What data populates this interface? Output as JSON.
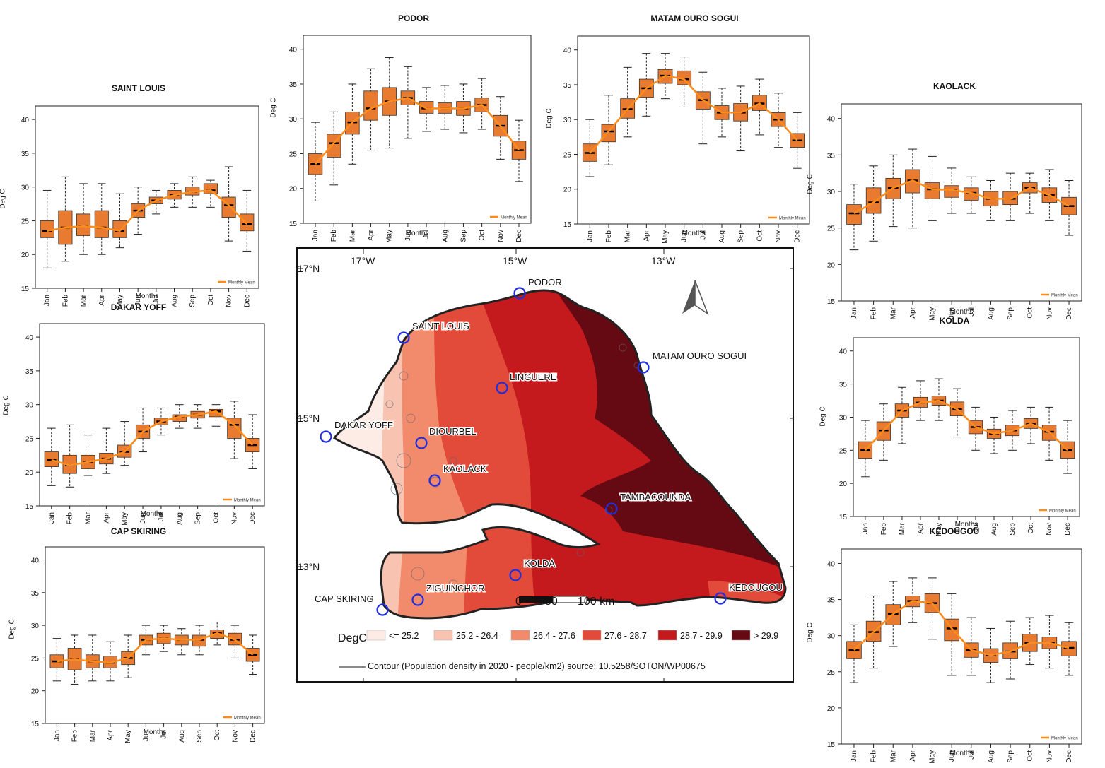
{
  "common": {
    "months": [
      "Jan",
      "Feb",
      "Mar",
      "Apr",
      "May",
      "Jun",
      "Jul",
      "Aug",
      "Sep",
      "Oct",
      "Nov",
      "Dec"
    ],
    "xlabel": "Months",
    "ylabel": "Deg C",
    "yticks": [
      15,
      20,
      25,
      30,
      35,
      40
    ],
    "legend": "Monthly Mean",
    "box_color": "#e87b2f",
    "mean_color": "#ff8c1a"
  },
  "chart_data": [
    {
      "type": "box",
      "title": "SAINT LOUIS",
      "ylim": [
        15,
        42
      ],
      "median": [
        23.5,
        24,
        24.2,
        24,
        23.5,
        26.5,
        28,
        28.8,
        29.3,
        29.5,
        27.3,
        24.5
      ],
      "q1": [
        22.5,
        21.5,
        22.8,
        22.5,
        22.5,
        25.5,
        27.5,
        28.2,
        28.8,
        29,
        25.5,
        23.5
      ],
      "q3": [
        25,
        26.5,
        26,
        26.5,
        25,
        27.5,
        28.5,
        29.5,
        30,
        30.5,
        28.5,
        26
      ],
      "min": [
        18,
        19,
        20,
        20,
        21,
        23,
        26,
        27,
        27,
        27,
        22,
        20.5
      ],
      "max": [
        29.5,
        31.5,
        30.5,
        30.5,
        29,
        30,
        29.5,
        30.5,
        31.5,
        31,
        33,
        29.5
      ],
      "mean": [
        23.5,
        24,
        24.2,
        24,
        23.5,
        26.5,
        28,
        28.8,
        29.3,
        29.5,
        27.3,
        24.5
      ]
    },
    {
      "type": "box",
      "title": "DAKAR YOFF",
      "ylim": [
        15,
        42
      ],
      "median": [
        21.8,
        21,
        21.5,
        22,
        23,
        26,
        27.5,
        28.2,
        28.5,
        29,
        27,
        24
      ],
      "q1": [
        20.8,
        19.8,
        20.5,
        21.2,
        22.2,
        25,
        27,
        27.5,
        28,
        28.2,
        25,
        23
      ],
      "q3": [
        23,
        22.5,
        22.5,
        22.8,
        24,
        27,
        28,
        28.5,
        29,
        29.3,
        28,
        25
      ],
      "min": [
        18,
        17.8,
        19.5,
        19.8,
        21,
        23,
        25.5,
        26.5,
        26.5,
        26.8,
        22,
        20.5
      ],
      "max": [
        26.5,
        27,
        25.5,
        26.5,
        27.5,
        29.5,
        29.5,
        30,
        30,
        30,
        30.5,
        28.5
      ],
      "mean": [
        21.8,
        21,
        21.5,
        22,
        23,
        26,
        27.5,
        28.2,
        28.5,
        29,
        27,
        24
      ]
    },
    {
      "type": "box",
      "title": "CAP SKIRING",
      "ylim": [
        15,
        42
      ],
      "median": [
        24.5,
        24.8,
        24.5,
        24.3,
        25,
        27.8,
        28,
        27.8,
        27.8,
        28.8,
        27.8,
        25.5
      ],
      "q1": [
        23.5,
        23.2,
        23.5,
        23.5,
        24,
        27,
        27.2,
        27,
        26.8,
        28,
        27,
        24.5
      ],
      "q3": [
        25.5,
        26.5,
        25.5,
        25.3,
        26,
        28.5,
        28.8,
        28.5,
        28.5,
        29.3,
        28.8,
        26.5
      ],
      "min": [
        21.5,
        21,
        21.5,
        21.5,
        22,
        25.5,
        26,
        25.5,
        25.5,
        27,
        25,
        22.5
      ],
      "max": [
        28,
        28.5,
        28.5,
        27.5,
        28.5,
        30,
        30,
        29.5,
        30,
        30.5,
        30,
        28.5
      ],
      "mean": [
        24.5,
        24.8,
        24.5,
        24.3,
        25,
        27.8,
        28,
        27.8,
        27.8,
        28.8,
        27.8,
        25.5
      ]
    },
    {
      "type": "box",
      "title": "PODOR",
      "ylim": [
        15,
        42
      ],
      "median": [
        23.5,
        26.5,
        29.5,
        31.5,
        32.5,
        33,
        31.5,
        31.5,
        31.5,
        32,
        29,
        25.5
      ],
      "q1": [
        22,
        24.5,
        27.8,
        29.8,
        30.5,
        32,
        30.8,
        30.8,
        30.5,
        31,
        27.5,
        24.2
      ],
      "q3": [
        25,
        27.8,
        31,
        34,
        34.5,
        34,
        32.5,
        32.3,
        32.5,
        33,
        30.5,
        26.8
      ],
      "min": [
        18.2,
        20.5,
        23.5,
        25.5,
        25.8,
        27.2,
        28.2,
        28.5,
        28,
        28.5,
        24.2,
        21
      ],
      "max": [
        29.5,
        31,
        35,
        37.2,
        38.8,
        37.5,
        34.5,
        34.8,
        35,
        35.8,
        33.2,
        29.8
      ],
      "mean": [
        23.5,
        26.5,
        29.5,
        31.5,
        32.5,
        33,
        31.5,
        31.5,
        31.5,
        32,
        29,
        25.5
      ]
    },
    {
      "type": "box",
      "title": "MATAM OURO SOGUI",
      "ylim": [
        15,
        42
      ],
      "median": [
        25.2,
        28.3,
        31.5,
        34.5,
        36.3,
        35.8,
        32.8,
        31,
        31,
        32.3,
        30,
        27
      ],
      "q1": [
        24,
        26.8,
        30.2,
        33.2,
        35.2,
        35,
        31.5,
        30,
        29.8,
        31.3,
        29,
        26
      ],
      "q3": [
        26.5,
        29.3,
        33,
        35.8,
        37.2,
        37,
        34,
        32,
        32.3,
        33.5,
        31,
        28
      ],
      "min": [
        21.8,
        23.5,
        27.5,
        30.5,
        33,
        31.8,
        26.5,
        27.5,
        25.5,
        27.8,
        26,
        23
      ],
      "max": [
        30,
        33.5,
        37.5,
        39.5,
        39.5,
        39,
        36.8,
        34.5,
        34.8,
        35.8,
        33.8,
        31
      ],
      "mean": [
        25.2,
        28.3,
        31.5,
        34.5,
        36.3,
        35.8,
        32.8,
        31,
        31,
        32.3,
        30,
        27
      ]
    },
    {
      "type": "box",
      "title": "KAOLACK",
      "ylim": [
        15,
        42
      ],
      "median": [
        27,
        28.5,
        30.5,
        31.5,
        30.3,
        30.2,
        29.8,
        29,
        29,
        30.5,
        29.5,
        28
      ],
      "q1": [
        25.5,
        27,
        29,
        29.8,
        29,
        29.2,
        28.8,
        28,
        28.2,
        29.8,
        28.5,
        26.8
      ],
      "q3": [
        28.2,
        30.5,
        31.8,
        33,
        31.2,
        30.8,
        30.5,
        30,
        30,
        31.2,
        30.5,
        29.2
      ],
      "min": [
        22,
        23.2,
        25.2,
        25,
        26,
        27,
        27,
        26,
        26,
        27,
        26,
        24
      ],
      "max": [
        31,
        33.5,
        35,
        35.8,
        34.8,
        33.2,
        32,
        31.5,
        32.5,
        32.5,
        33,
        31.5
      ],
      "mean": [
        27,
        28.5,
        30.5,
        31.5,
        30.3,
        30.2,
        29.8,
        29,
        29,
        30.5,
        29.5,
        28
      ]
    },
    {
      "type": "box",
      "title": "KOLDA",
      "ylim": [
        15,
        42
      ],
      "median": [
        25,
        28,
        31,
        32.2,
        32.5,
        31.2,
        28.5,
        27.5,
        28,
        29,
        27.8,
        25
      ],
      "q1": [
        23.8,
        26.5,
        30,
        31.5,
        31.8,
        30.2,
        27.5,
        26.8,
        27.2,
        28.3,
        26.5,
        23.8
      ],
      "q3": [
        26.3,
        29.3,
        32,
        33,
        33.2,
        32.3,
        29.5,
        28.2,
        28.8,
        29.8,
        28.8,
        26.3
      ],
      "min": [
        21,
        23.5,
        26,
        29.5,
        29.5,
        27,
        25,
        24.5,
        25,
        26,
        23.5,
        21.5
      ],
      "max": [
        29.5,
        32,
        34.5,
        35.5,
        35.8,
        34.3,
        31.5,
        30,
        31,
        31.5,
        31.5,
        29.5
      ],
      "mean": [
        25,
        28,
        31,
        32.2,
        32.5,
        31.2,
        28.5,
        27.5,
        28,
        29,
        27.8,
        25
      ]
    },
    {
      "type": "box",
      "title": "KEDOUGOU",
      "ylim": [
        15,
        42
      ],
      "median": [
        28,
        30.5,
        33,
        34.8,
        34.5,
        31,
        28,
        27.3,
        27.8,
        29,
        29,
        28.3
      ],
      "q1": [
        26.8,
        29.2,
        31.5,
        34,
        33.2,
        29.3,
        27,
        26.3,
        26.8,
        27.8,
        28.2,
        27.2
      ],
      "q3": [
        29.2,
        32,
        34.3,
        35.5,
        35.8,
        32.3,
        29,
        28.2,
        29,
        30.2,
        29.8,
        29.2
      ],
      "min": [
        23.5,
        25.5,
        28.5,
        31.8,
        29.5,
        24.5,
        24.5,
        23.5,
        24,
        26,
        25.5,
        24.5
      ],
      "max": [
        31.5,
        35.5,
        37.5,
        38,
        38,
        35.8,
        32.5,
        31,
        32,
        32.5,
        32.8,
        31.8
      ],
      "mean": [
        28,
        30.5,
        33,
        34.8,
        34.5,
        31,
        28,
        27.3,
        27.8,
        29,
        29,
        28.3
      ]
    }
  ],
  "map": {
    "lon_labels": [
      "17°W",
      "15°W",
      "13°W"
    ],
    "lat_labels": [
      "17°N",
      "15°N",
      "13°N"
    ],
    "stations": [
      "PODOR",
      "SAINT LOUIS",
      "LINGUERE",
      "MATAM OURO SOGUI",
      "DAKAR YOFF",
      "DIOURBEL",
      "KAOLACK",
      "TAMBACOUNDA",
      "KOLDA",
      "ZIGUINCHOR",
      "CAP SKIRING",
      "KEDOUGOU"
    ],
    "scale_labels": [
      "0",
      "50",
      "100 km"
    ],
    "legend_title": "DegC",
    "classes": [
      {
        "label": "<= 25.2",
        "color": "#fdece6"
      },
      {
        "label": "25.2 - 26.4",
        "color": "#f8c3b1"
      },
      {
        "label": "26.4 - 27.6",
        "color": "#f28a6c"
      },
      {
        "label": "27.6 - 28.7",
        "color": "#e24a3a"
      },
      {
        "label": "28.7 - 29.9",
        "color": "#c41a1d"
      },
      {
        "label": "> 29.9",
        "color": "#650a12"
      }
    ],
    "contour_note": "Contour (Population density in 2020 - people/km2) source: 10.5258/SOTON/WP00675"
  }
}
